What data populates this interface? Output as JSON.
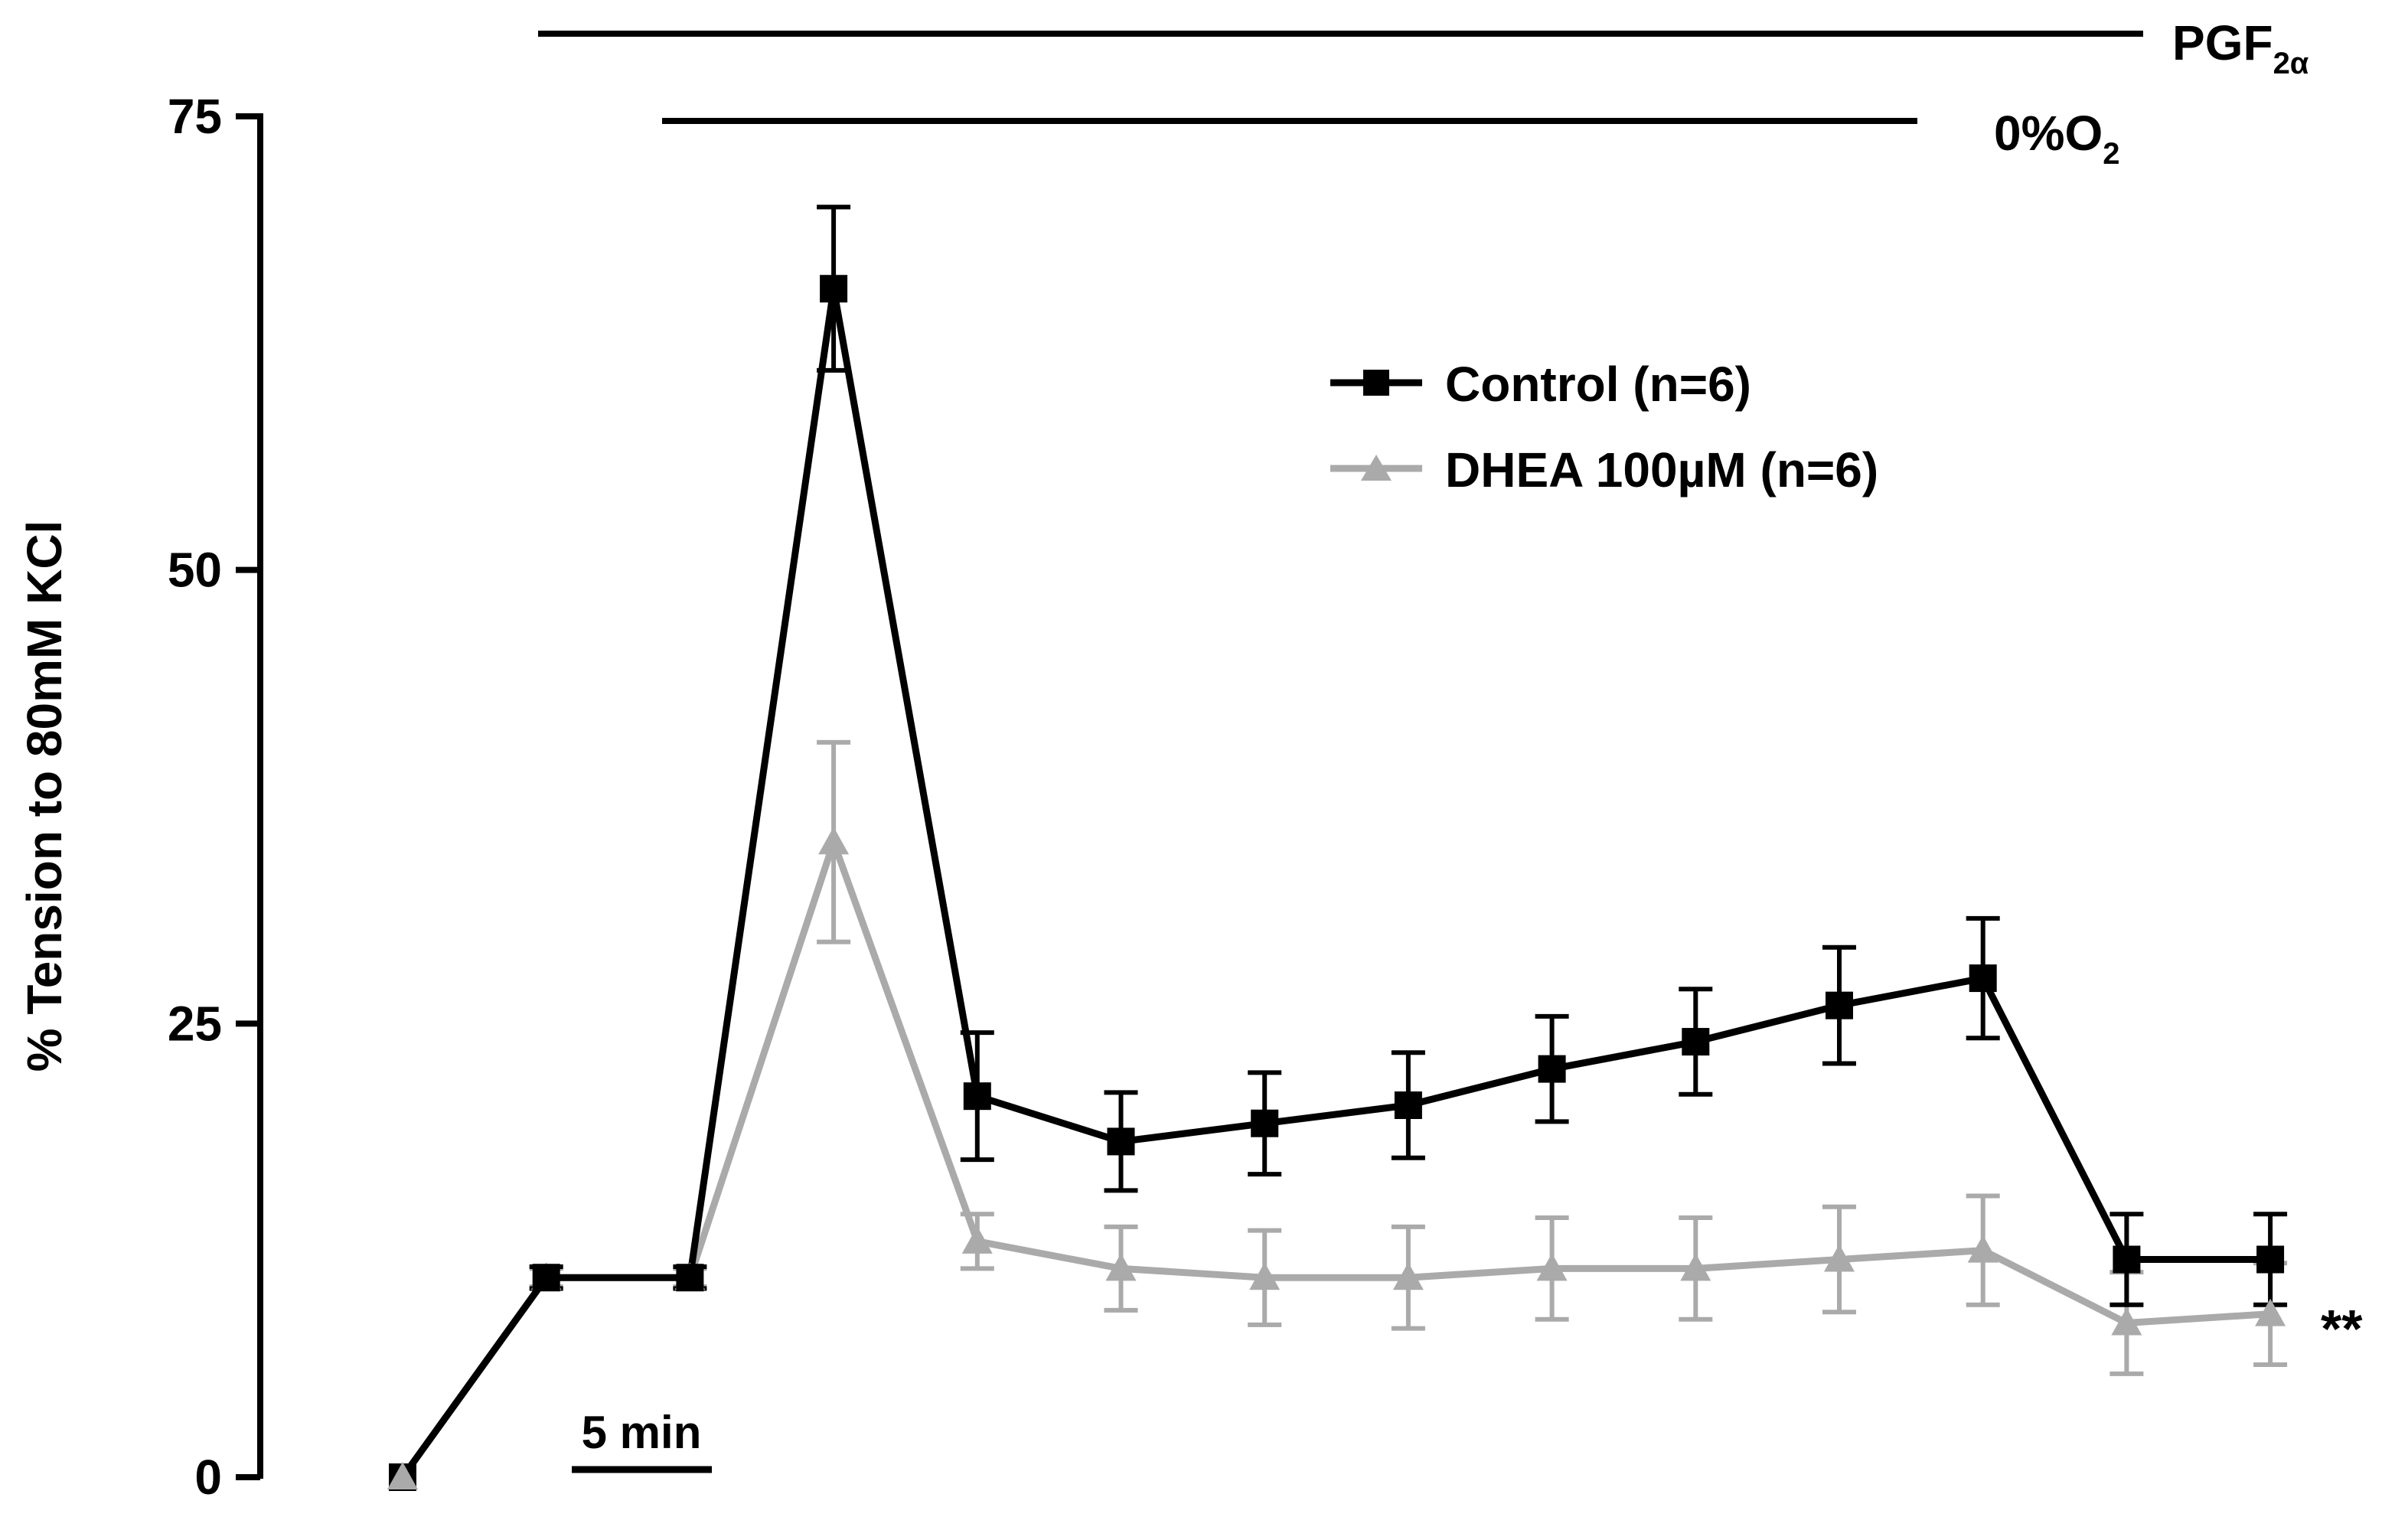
{
  "chart_data": {
    "type": "line",
    "title": "",
    "xlabel": "",
    "ylabel": "% Tension to 80mM KCl",
    "ylim": [
      0,
      75
    ],
    "yticks": [
      0,
      25,
      50,
      75
    ],
    "x": [
      0,
      1,
      2,
      3,
      4,
      5,
      6,
      7,
      8,
      9,
      10,
      11,
      12,
      13
    ],
    "series": [
      {
        "name": "Control (n=6)",
        "color": "#000000",
        "marker": "square",
        "values": [
          0,
          11,
          11,
          65.5,
          21,
          18.5,
          19.5,
          20.5,
          22.5,
          24,
          26,
          27.5,
          12,
          12
        ],
        "errors": [
          0,
          0.6,
          0.6,
          4.5,
          3.5,
          2.7,
          2.8,
          2.9,
          2.9,
          2.9,
          3.2,
          3.3,
          2.5,
          2.5
        ]
      },
      {
        "name": "DHEA 100µM (n=6)",
        "color": "#aaaaaa",
        "marker": "triangle",
        "values": [
          0,
          11,
          11,
          35,
          13,
          11.5,
          11,
          11,
          11.5,
          11.5,
          12,
          12.5,
          8.5,
          9
        ],
        "errors": [
          0,
          0.5,
          0.5,
          5.5,
          1.5,
          2.3,
          2.6,
          2.8,
          2.8,
          2.8,
          2.9,
          3.0,
          2.8,
          2.8
        ]
      }
    ],
    "annotations": {
      "pgf_label": "PGF",
      "pgf_sub": "2α",
      "o2_label": "0%O",
      "o2_sub": "2",
      "scale_bar": "5 min",
      "significance": "**"
    },
    "legend_position": "top-right"
  }
}
